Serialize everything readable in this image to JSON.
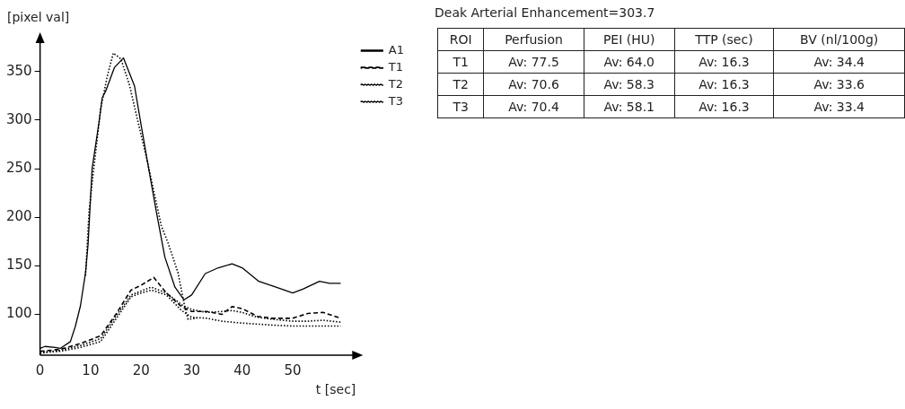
{
  "chart_data": [
    {
      "type": "line",
      "xlabel": "t [sec]",
      "ylabel": "[pixel val]",
      "xlim": [
        0,
        62.5
      ],
      "xticks": [
        0,
        10,
        20,
        30,
        40,
        50
      ],
      "ylim": [
        58,
        383
      ],
      "yticks": [
        100,
        150,
        200,
        250,
        300,
        350
      ],
      "grid": false,
      "legend": "top right",
      "marker": "none",
      "series": [
        {
          "name": "A1",
          "color": "#000000",
          "line_style": "solid",
          "x": [
            0,
            1,
            3,
            4,
            6,
            7,
            8,
            9,
            9.5,
            10.3,
            11.7,
            12.3,
            13,
            14.7,
            16.5,
            18.7,
            20,
            21.3,
            23,
            24.7,
            26.7,
            28.5,
            30,
            32.7,
            35.3,
            38,
            40,
            43.3,
            46.7,
            50,
            52,
            55.3,
            57.3,
            59.5
          ],
          "values": [
            65,
            67,
            66,
            65,
            72,
            88,
            109,
            143,
            172,
            250,
            299,
            323,
            330,
            354,
            364,
            335,
            295,
            256,
            206,
            159,
            128,
            115,
            120,
            142,
            148,
            152,
            148,
            134,
            128,
            122,
            126,
            134,
            132,
            132
          ]
        },
        {
          "color": "#000000",
          "line_style": "dotted",
          "x": [
            9,
            9.7,
            10.3,
            12,
            13.3,
            14.5,
            16,
            17.7,
            19.3,
            21.3,
            24,
            25.3,
            27.3,
            28.7,
            29.3,
            31
          ],
          "values": [
            140,
            206,
            235,
            312,
            345,
            369,
            363,
            336,
            300,
            256,
            191,
            174,
            143,
            106,
            95,
            96
          ]
        },
        {
          "name": "T1",
          "color": "#000000",
          "line_style": "dashed",
          "x": [
            0,
            4,
            8,
            12,
            15,
            18,
            20,
            22.5,
            25,
            28,
            30,
            33,
            36,
            38,
            40,
            43,
            46,
            50,
            53,
            56,
            59.5
          ],
          "values": [
            62,
            64,
            70,
            78,
            100,
            125,
            130,
            138,
            122,
            108,
            103,
            103,
            100,
            108,
            106,
            98,
            96,
            96,
            101,
            102,
            96
          ]
        },
        {
          "name": "T2",
          "color": "#000000",
          "line_style": "dotted",
          "x": [
            0,
            4,
            8,
            12,
            15,
            18,
            20,
            22,
            25,
            28,
            30,
            33,
            36,
            38,
            40,
            43,
            46,
            50,
            53,
            56,
            59.5
          ],
          "values": [
            60,
            63,
            68,
            75,
            98,
            120,
            124,
            128,
            122,
            110,
            105,
            102,
            103,
            104,
            102,
            97,
            95,
            93,
            93,
            94,
            92
          ]
        },
        {
          "name": "T3",
          "color": "#000000",
          "line_style": "dotted",
          "x": [
            0,
            4,
            8,
            12,
            15,
            18,
            20,
            22,
            25,
            28,
            30,
            33,
            36,
            40,
            43,
            46,
            50,
            55,
            59.5
          ],
          "values": [
            61,
            62,
            66,
            72,
            95,
            118,
            122,
            125,
            120,
            104,
            97,
            96,
            93,
            91,
            90,
            89,
            88,
            88,
            88
          ]
        }
      ]
    },
    {
      "type": "other",
      "title": "Deak Arterial Enhancement=303.7",
      "categories": [
        "ROI",
        "Perfusion",
        "PEI (HU)",
        "TTP (sec)",
        "BV (nl/100g)"
      ],
      "annotations": [
        "T1",
        "Av: 77.5",
        "Av: 64.0",
        "Av: 16.3",
        "Av: 34.4",
        "T2",
        "Av: 70.6",
        "Av: 58.3",
        "Av: 16.3",
        "Av: 33.6",
        "T3",
        "Av: 70.4",
        "Av: 58.1",
        "Av: 16.3",
        "Av: 33.4"
      ]
    }
  ]
}
